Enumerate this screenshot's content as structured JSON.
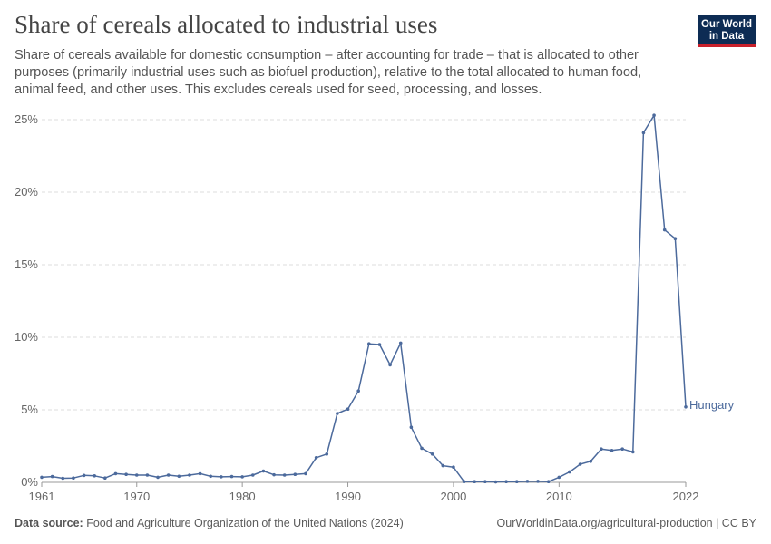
{
  "header": {
    "title": "Share of cereals allocated to industrial uses",
    "subtitle": "Share of cereals available for domestic consumption – after accounting for trade – that is allocated to other purposes (primarily industrial uses such as biofuel production), relative to the total allocated to human food, animal feed, and other uses. This excludes cereals used for seed, processing, and losses."
  },
  "logo": {
    "line1": "Our World",
    "line2": "in Data",
    "bg_color": "#0d2c54",
    "accent_color": "#c8202b"
  },
  "footer": {
    "source_label": "Data source:",
    "source_text": "Food and Agriculture Organization of the United Nations (2024)",
    "link_text": "OurWorldinData.org/agricultural-production | CC BY"
  },
  "chart_data": {
    "type": "line",
    "title": "Share of cereals allocated to industrial uses",
    "xlabel": "",
    "ylabel": "",
    "xlim": [
      1961,
      2022
    ],
    "ylim": [
      0,
      25
    ],
    "x_ticks": [
      1961,
      1970,
      1980,
      1990,
      2000,
      2010,
      2022
    ],
    "y_ticks": [
      0,
      5,
      10,
      15,
      20,
      25
    ],
    "y_tick_labels": [
      "0%",
      "5%",
      "10%",
      "15%",
      "20%",
      "25%"
    ],
    "grid": "horizontal dashed",
    "legend": "inline label at line end",
    "series": [
      {
        "name": "Hungary",
        "color": "#4c6a9c",
        "x": [
          1961,
          1962,
          1963,
          1964,
          1965,
          1966,
          1967,
          1968,
          1969,
          1970,
          1971,
          1972,
          1973,
          1974,
          1975,
          1976,
          1977,
          1978,
          1979,
          1980,
          1981,
          1982,
          1983,
          1984,
          1985,
          1986,
          1987,
          1988,
          1989,
          1990,
          1991,
          1992,
          1993,
          1994,
          1995,
          1996,
          1997,
          1998,
          1999,
          2000,
          2001,
          2002,
          2003,
          2004,
          2005,
          2006,
          2007,
          2008,
          2009,
          2010,
          2011,
          2012,
          2013,
          2014,
          2015,
          2016,
          2017,
          2018,
          2019,
          2020,
          2021,
          2022
        ],
        "values": [
          0.35,
          0.4,
          0.28,
          0.3,
          0.48,
          0.45,
          0.3,
          0.6,
          0.55,
          0.5,
          0.5,
          0.35,
          0.5,
          0.42,
          0.5,
          0.6,
          0.42,
          0.38,
          0.4,
          0.38,
          0.5,
          0.78,
          0.52,
          0.5,
          0.55,
          0.6,
          1.7,
          1.95,
          4.75,
          5.05,
          6.3,
          9.55,
          9.5,
          8.1,
          9.6,
          3.8,
          2.35,
          1.95,
          1.15,
          1.05,
          0.05,
          0.05,
          0.05,
          0.03,
          0.05,
          0.05,
          0.07,
          0.07,
          0.05,
          0.35,
          0.72,
          1.25,
          1.45,
          2.3,
          2.2,
          2.3,
          2.1,
          24.1,
          25.3,
          17.4,
          16.8,
          5.2
        ]
      }
    ]
  }
}
